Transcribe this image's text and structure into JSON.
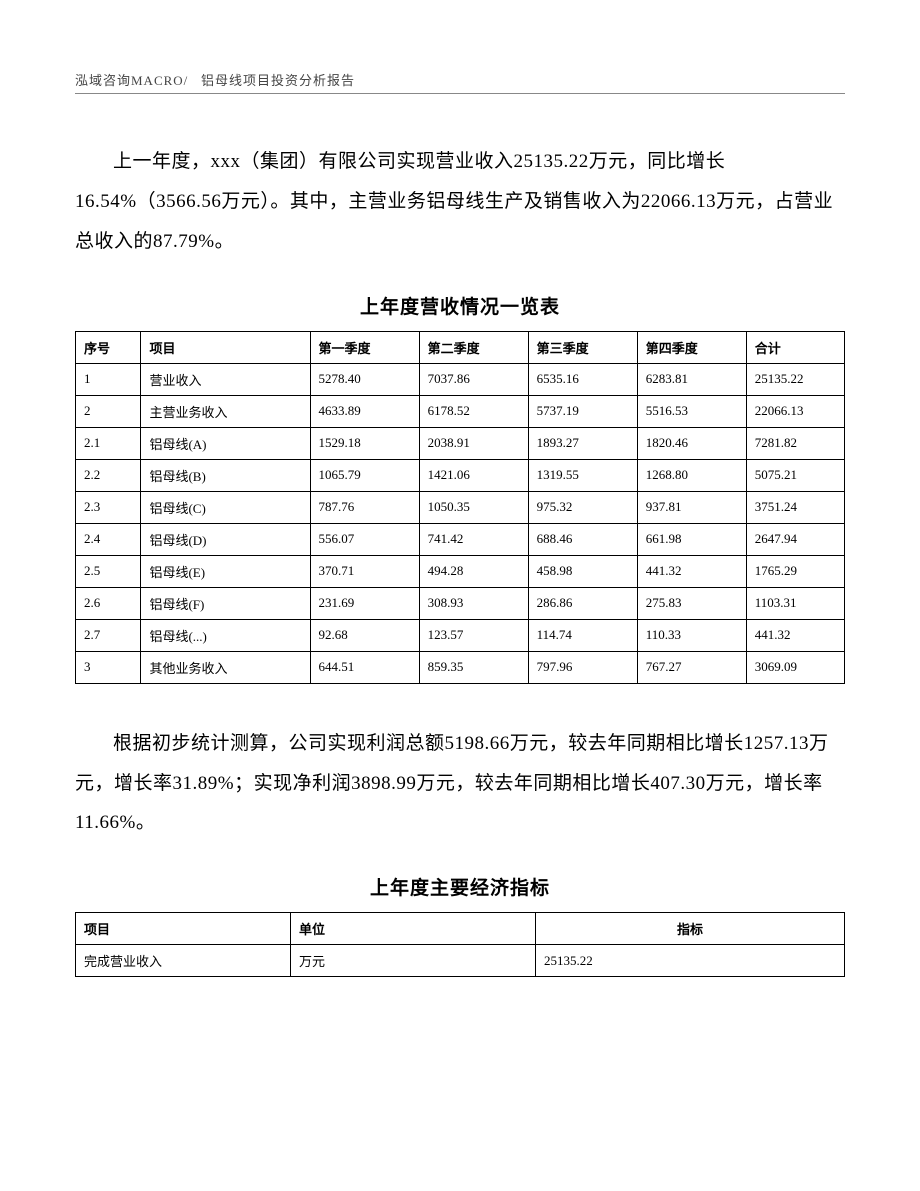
{
  "header": {
    "left": "泓域咨询MACRO/",
    "right": "铝母线项目投资分析报告"
  },
  "paragraph1": "上一年度，xxx（集团）有限公司实现营业收入25135.22万元，同比增长16.54%（3566.56万元）。其中，主营业务铝母线生产及销售收入为22066.13万元，占营业总收入的87.79%。",
  "table1": {
    "title": "上年度营收情况一览表",
    "columns": [
      "序号",
      "项目",
      "第一季度",
      "第二季度",
      "第三季度",
      "第四季度",
      "合计"
    ],
    "rows": [
      [
        "1",
        "营业收入",
        "5278.40",
        "7037.86",
        "6535.16",
        "6283.81",
        "25135.22"
      ],
      [
        "2",
        "主营业务收入",
        "4633.89",
        "6178.52",
        "5737.19",
        "5516.53",
        "22066.13"
      ],
      [
        "2.1",
        "铝母线(A)",
        "1529.18",
        "2038.91",
        "1893.27",
        "1820.46",
        "7281.82"
      ],
      [
        "2.2",
        "铝母线(B)",
        "1065.79",
        "1421.06",
        "1319.55",
        "1268.80",
        "5075.21"
      ],
      [
        "2.3",
        "铝母线(C)",
        "787.76",
        "1050.35",
        "975.32",
        "937.81",
        "3751.24"
      ],
      [
        "2.4",
        "铝母线(D)",
        "556.07",
        "741.42",
        "688.46",
        "661.98",
        "2647.94"
      ],
      [
        "2.5",
        "铝母线(E)",
        "370.71",
        "494.28",
        "458.98",
        "441.32",
        "1765.29"
      ],
      [
        "2.6",
        "铝母线(F)",
        "231.69",
        "308.93",
        "286.86",
        "275.83",
        "1103.31"
      ],
      [
        "2.7",
        "铝母线(...)",
        "92.68",
        "123.57",
        "114.74",
        "110.33",
        "441.32"
      ],
      [
        "3",
        "其他业务收入",
        "644.51",
        "859.35",
        "797.96",
        "767.27",
        "3069.09"
      ]
    ]
  },
  "paragraph2": "根据初步统计测算，公司实现利润总额5198.66万元，较去年同期相比增长1257.13万元，增长率31.89%；实现净利润3898.99万元，较去年同期相比增长407.30万元，增长率11.66%。",
  "table2": {
    "title": "上年度主要经济指标",
    "columns": [
      "项目",
      "单位",
      "指标"
    ],
    "rows": [
      [
        "完成营业收入",
        "万元",
        "25135.22"
      ]
    ]
  }
}
